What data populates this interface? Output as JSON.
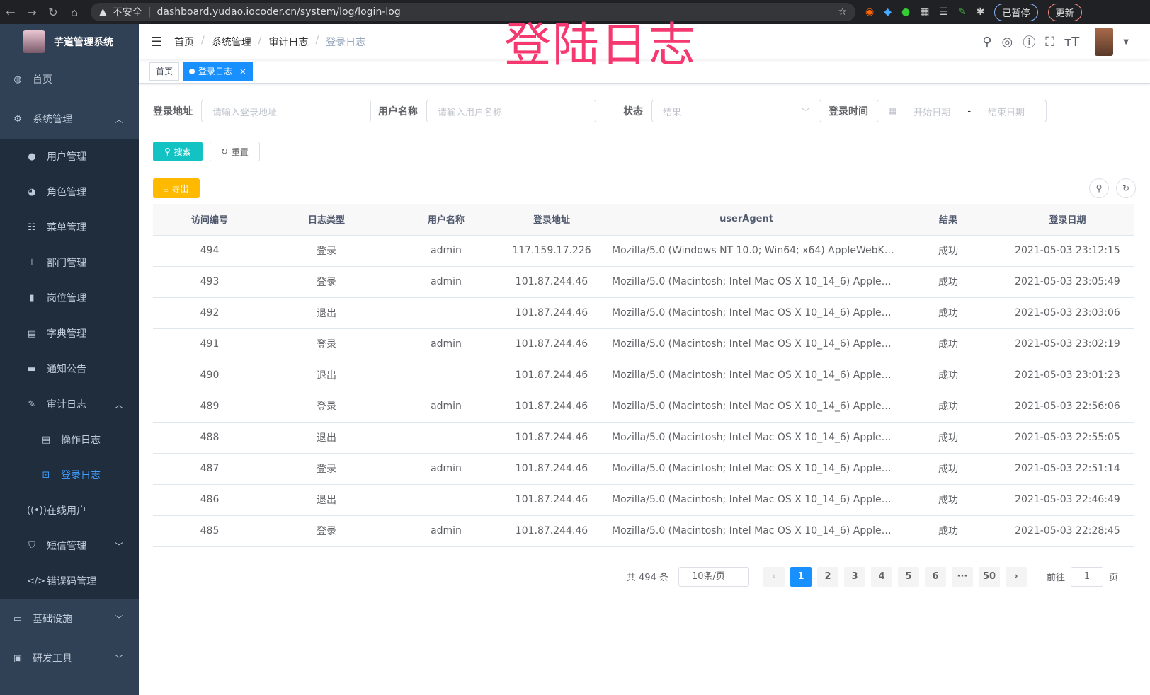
{
  "browser": {
    "insecure": "不安全",
    "url": "dashboard.yudao.iocoder.cn/system/log/login-log",
    "paused": "已暂停",
    "update": "更新"
  },
  "watermark": "登陆日志",
  "sidebar": {
    "title": "芋道管理系统",
    "items": [
      {
        "label": "首页",
        "icon": "dashboard-icon"
      },
      {
        "label": "系统管理",
        "icon": "gear-icon",
        "children": [
          {
            "label": "用户管理",
            "icon": "user-icon"
          },
          {
            "label": "角色管理",
            "icon": "peoples-icon"
          },
          {
            "label": "菜单管理",
            "icon": "tree-table-icon"
          },
          {
            "label": "部门管理",
            "icon": "tree-icon"
          },
          {
            "label": "岗位管理",
            "icon": "post-icon"
          },
          {
            "label": "字典管理",
            "icon": "dict-icon"
          },
          {
            "label": "通知公告",
            "icon": "message-icon"
          },
          {
            "label": "审计日志",
            "icon": "log-icon",
            "children": [
              {
                "label": "操作日志",
                "icon": "form-icon"
              },
              {
                "label": "登录日志",
                "icon": "logininfor-icon",
                "active": true
              }
            ]
          },
          {
            "label": "在线用户",
            "icon": "online-icon"
          },
          {
            "label": "短信管理",
            "icon": "validcode-icon"
          },
          {
            "label": "错误码管理",
            "icon": "code-icon"
          }
        ]
      },
      {
        "label": "基础设施",
        "icon": "monitor-icon"
      },
      {
        "label": "研发工具",
        "icon": "tool-icon"
      }
    ]
  },
  "breadcrumb": [
    "首页",
    "系统管理",
    "审计日志",
    "登录日志"
  ],
  "tags": [
    {
      "label": "首页"
    },
    {
      "label": "登录日志",
      "active": true
    }
  ],
  "filters": {
    "ip_label": "登录地址",
    "ip_placeholder": "请输入登录地址",
    "user_label": "用户名称",
    "user_placeholder": "请输入用户名称",
    "status_label": "状态",
    "status_placeholder": "结果",
    "time_label": "登录时间",
    "start_placeholder": "开始日期",
    "sep": "-",
    "end_placeholder": "结束日期"
  },
  "buttons": {
    "search": "搜索",
    "reset": "重置",
    "export": "导出"
  },
  "table": {
    "columns": [
      "访问编号",
      "日志类型",
      "用户名称",
      "登录地址",
      "userAgent",
      "结果",
      "登录日期"
    ],
    "rows": [
      [
        "494",
        "登录",
        "admin",
        "117.159.17.226",
        "Mozilla/5.0 (Windows NT 10.0; Win64; x64) AppleWebKit...",
        "成功",
        "2021-05-03 23:12:15"
      ],
      [
        "493",
        "登录",
        "admin",
        "101.87.244.46",
        "Mozilla/5.0 (Macintosh; Intel Mac OS X 10_14_6) AppleWe...",
        "成功",
        "2021-05-03 23:05:49"
      ],
      [
        "492",
        "退出",
        "",
        "101.87.244.46",
        "Mozilla/5.0 (Macintosh; Intel Mac OS X 10_14_6) AppleWe...",
        "成功",
        "2021-05-03 23:03:06"
      ],
      [
        "491",
        "登录",
        "admin",
        "101.87.244.46",
        "Mozilla/5.0 (Macintosh; Intel Mac OS X 10_14_6) AppleWe...",
        "成功",
        "2021-05-03 23:02:19"
      ],
      [
        "490",
        "退出",
        "",
        "101.87.244.46",
        "Mozilla/5.0 (Macintosh; Intel Mac OS X 10_14_6) AppleWe...",
        "成功",
        "2021-05-03 23:01:23"
      ],
      [
        "489",
        "登录",
        "admin",
        "101.87.244.46",
        "Mozilla/5.0 (Macintosh; Intel Mac OS X 10_14_6) AppleWe...",
        "成功",
        "2021-05-03 22:56:06"
      ],
      [
        "488",
        "退出",
        "",
        "101.87.244.46",
        "Mozilla/5.0 (Macintosh; Intel Mac OS X 10_14_6) AppleWe...",
        "成功",
        "2021-05-03 22:55:05"
      ],
      [
        "487",
        "登录",
        "admin",
        "101.87.244.46",
        "Mozilla/5.0 (Macintosh; Intel Mac OS X 10_14_6) AppleWe...",
        "成功",
        "2021-05-03 22:51:14"
      ],
      [
        "486",
        "退出",
        "",
        "101.87.244.46",
        "Mozilla/5.0 (Macintosh; Intel Mac OS X 10_14_6) AppleWe...",
        "成功",
        "2021-05-03 22:46:49"
      ],
      [
        "485",
        "登录",
        "admin",
        "101.87.244.46",
        "Mozilla/5.0 (Macintosh; Intel Mac OS X 10_14_6) AppleWe...",
        "成功",
        "2021-05-03 22:28:45"
      ]
    ]
  },
  "pagination": {
    "total": "共 494 条",
    "page_size": "10条/页",
    "pages": [
      "1",
      "2",
      "3",
      "4",
      "5",
      "6",
      "···",
      "50"
    ],
    "current": "1",
    "goto": "前往",
    "goto_value": "1",
    "page_unit": "页"
  }
}
